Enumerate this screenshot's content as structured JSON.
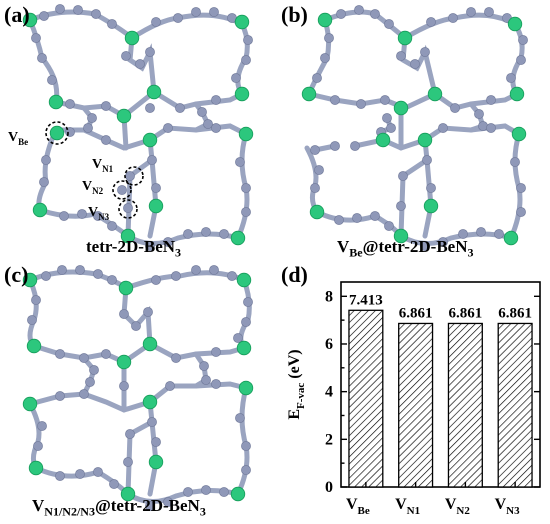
{
  "panels": {
    "a": {
      "label": "(a)",
      "caption_main": "tetr-2D-BeN",
      "caption_sub": "3"
    },
    "b": {
      "label": "(b)",
      "caption_pre": "V",
      "caption_pre_sub": "Be",
      "caption_main": "@tetr-2D-BeN",
      "caption_sub": "3"
    },
    "c": {
      "label": "(c)",
      "caption_pre": "V",
      "caption_pre_sub": "N1/N2/N3",
      "caption_main": "@tetr-2D-BeN",
      "caption_sub": "3"
    },
    "d": {
      "label": "(d)"
    }
  },
  "annotations": {
    "vbe": {
      "main": "V",
      "sub": "Be"
    },
    "vn1": {
      "main": "V",
      "sub": "N1"
    },
    "vn2": {
      "main": "V",
      "sub": "N2"
    },
    "vn3": {
      "main": "V",
      "sub": "N3"
    }
  },
  "colors": {
    "be_atom": "#2cc77d",
    "n_atom": "#8f98b8",
    "bar_hatch": "#000000"
  },
  "chart_data": {
    "type": "bar",
    "categories": [
      "V_Be",
      "V_N1",
      "V_N2",
      "V_N3"
    ],
    "category_labels": [
      {
        "main": "V",
        "sub": "Be"
      },
      {
        "main": "V",
        "sub": "N1"
      },
      {
        "main": "V",
        "sub": "N2"
      },
      {
        "main": "V",
        "sub": "N3"
      }
    ],
    "values": [
      7.413,
      6.861,
      6.861,
      6.861
    ],
    "value_labels": [
      "7.413",
      "6.861",
      "6.861",
      "6.861"
    ],
    "ylabel": {
      "main": "E",
      "sub": "F-vac",
      "unit": " (eV)"
    },
    "ylim": [
      0,
      8.6
    ],
    "yticks": [
      0,
      2,
      4,
      6,
      8
    ],
    "grid": false,
    "bar_fill": "hatched"
  }
}
